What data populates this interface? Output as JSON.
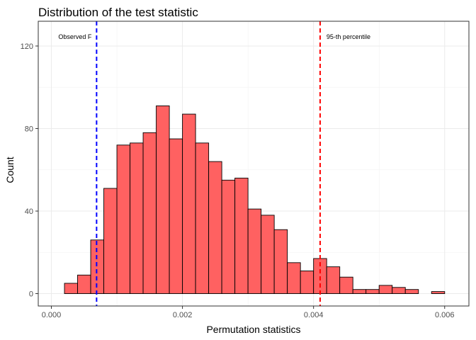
{
  "chart_data": {
    "type": "bar",
    "title": "Distribution of the test statistic",
    "xlabel": "Permutation statistics",
    "ylabel": "Count",
    "xlim": [
      -0.0002,
      0.00637
    ],
    "ylim": [
      -6,
      132
    ],
    "x_ticks": [
      0.0,
      0.002,
      0.004,
      0.006
    ],
    "x_tick_labels": [
      "0.000",
      "0.002",
      "0.004",
      "0.006"
    ],
    "y_ticks": [
      0,
      40,
      80,
      120
    ],
    "y_tick_labels": [
      "0",
      "40",
      "80",
      "120"
    ],
    "bin_width": 0.0002,
    "bins_x": [
      0.0001,
      0.0003,
      0.0005,
      0.0007,
      0.0009,
      0.0011,
      0.0013,
      0.0015,
      0.0017,
      0.0019,
      0.0021,
      0.0023,
      0.0025,
      0.0027,
      0.0029,
      0.0031,
      0.0033,
      0.0035,
      0.0037,
      0.0039,
      0.0041,
      0.0043,
      0.0045,
      0.0047,
      0.0049,
      0.0051,
      0.0053,
      0.0055,
      0.0057,
      0.0059
    ],
    "counts": [
      0,
      5,
      9,
      26,
      51,
      72,
      73,
      78,
      91,
      75,
      87,
      73,
      64,
      55,
      56,
      41,
      38,
      31,
      15,
      11,
      17,
      13,
      8,
      2,
      2,
      4,
      3,
      2,
      0,
      1
    ],
    "bar_color": "#ff6161",
    "bar_border_color": "#000000",
    "grid": true,
    "reference_lines": [
      {
        "x": 0.00069,
        "color": "#0000ff",
        "style": "dashed",
        "label": "Observed F"
      },
      {
        "x": 0.0041,
        "color": "#ff0000",
        "style": "dashed",
        "label": "95-th percentile"
      }
    ]
  }
}
